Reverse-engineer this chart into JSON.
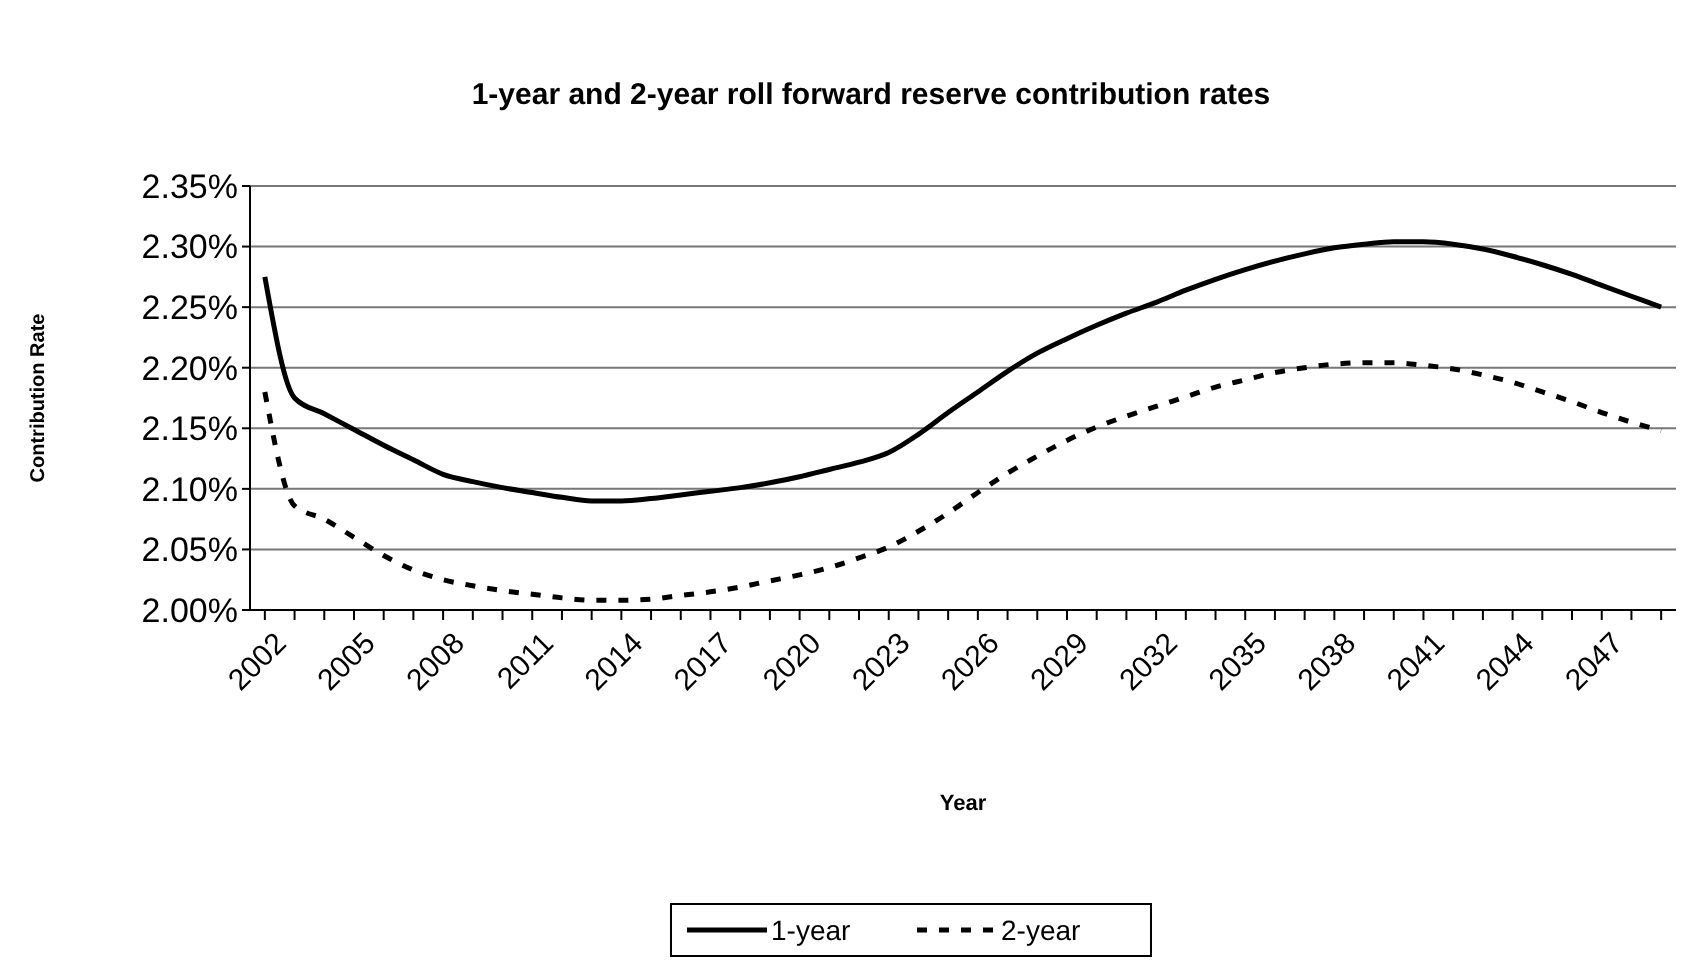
{
  "chart_data": {
    "type": "line",
    "title": "1-year and 2-year roll forward reserve contribution rates",
    "xlabel": "Year",
    "ylabel": "Contribution Rate",
    "categories": [
      "2002",
      null,
      null,
      "2005",
      null,
      null,
      "2008",
      null,
      null,
      "2011",
      null,
      null,
      "2014",
      null,
      null,
      "2017",
      null,
      null,
      "2020",
      null,
      null,
      "2023",
      null,
      null,
      "2026",
      null,
      null,
      "2029",
      null,
      null,
      "2032",
      null,
      null,
      "2035",
      null,
      null,
      "2038",
      null,
      null,
      "2041",
      null,
      null,
      "2044",
      null,
      null,
      "2047",
      null,
      null
    ],
    "series": [
      {
        "name": "1-year",
        "color": "#000000",
        "line_style": "solid",
        "values": [
          2.275,
          2.175,
          2.162,
          2.149,
          2.136,
          2.124,
          2.112,
          2.106,
          2.101,
          2.097,
          2.093,
          2.09,
          2.09,
          2.092,
          2.095,
          2.098,
          2.101,
          2.105,
          2.11,
          2.116,
          2.122,
          2.13,
          2.145,
          2.163,
          2.18,
          2.197,
          2.212,
          2.224,
          2.235,
          2.245,
          2.254,
          2.264,
          2.273,
          2.281,
          2.288,
          2.294,
          2.299,
          2.302,
          2.304,
          2.304,
          2.302,
          2.298,
          2.292,
          2.285,
          2.277,
          2.268,
          2.259,
          2.25
        ]
      },
      {
        "name": "2-year",
        "color": "#000000",
        "line_style": "dashed",
        "values": [
          2.18,
          2.086,
          2.075,
          2.06,
          2.045,
          2.033,
          2.025,
          2.02,
          2.016,
          2.013,
          2.01,
          2.008,
          2.008,
          2.009,
          2.012,
          2.015,
          2.019,
          2.024,
          2.029,
          2.035,
          2.043,
          2.052,
          2.065,
          2.08,
          2.097,
          2.113,
          2.127,
          2.14,
          2.151,
          2.16,
          2.168,
          2.176,
          2.184,
          2.19,
          2.196,
          2.2,
          2.203,
          2.204,
          2.204,
          2.202,
          2.199,
          2.194,
          2.188,
          2.18,
          2.172,
          2.163,
          2.155,
          2.148
        ]
      }
    ],
    "ylim": [
      2.0,
      2.35
    ],
    "yticks": [
      {
        "value": 2.0,
        "label": "2.00%"
      },
      {
        "value": 2.05,
        "label": "2.05%"
      },
      {
        "value": 2.1,
        "label": "2.10%"
      },
      {
        "value": 2.15,
        "label": "2.15%"
      },
      {
        "value": 2.2,
        "label": "2.20%"
      },
      {
        "value": 2.25,
        "label": "2.25%"
      },
      {
        "value": 2.3,
        "label": "2.30%"
      },
      {
        "value": 2.35,
        "label": "2.35%"
      }
    ],
    "grid": "y",
    "legend": "bottom",
    "marker": "none"
  }
}
